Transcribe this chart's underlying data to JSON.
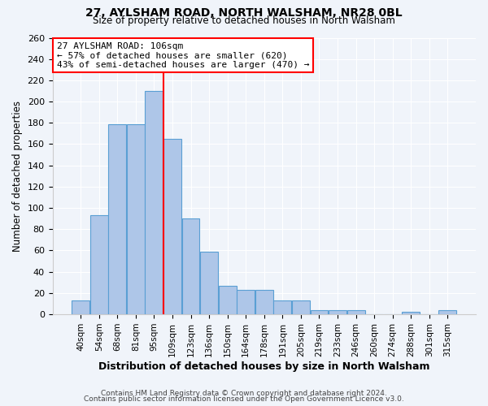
{
  "title": "27, AYLSHAM ROAD, NORTH WALSHAM, NR28 0BL",
  "subtitle": "Size of property relative to detached houses in North Walsham",
  "xlabel": "Distribution of detached houses by size in North Walsham",
  "ylabel": "Number of detached properties",
  "bar_labels": [
    "40sqm",
    "54sqm",
    "68sqm",
    "81sqm",
    "95sqm",
    "109sqm",
    "123sqm",
    "136sqm",
    "150sqm",
    "164sqm",
    "178sqm",
    "191sqm",
    "205sqm",
    "219sqm",
    "233sqm",
    "246sqm",
    "260sqm",
    "274sqm",
    "288sqm",
    "301sqm",
    "315sqm"
  ],
  "bar_values": [
    13,
    93,
    179,
    179,
    210,
    165,
    90,
    59,
    27,
    23,
    23,
    13,
    13,
    4,
    4,
    4,
    0,
    0,
    2,
    0,
    4
  ],
  "bar_color": "#aec6e8",
  "bar_edge_color": "#5a9fd4",
  "vline_x": 4.5,
  "vline_color": "red",
  "annotation_title": "27 AYLSHAM ROAD: 106sqm",
  "annotation_line1": "← 57% of detached houses are smaller (620)",
  "annotation_line2": "43% of semi-detached houses are larger (470) →",
  "annotation_box_color": "white",
  "annotation_box_edge": "red",
  "ylim": [
    0,
    260
  ],
  "yticks": [
    0,
    20,
    40,
    60,
    80,
    100,
    120,
    140,
    160,
    180,
    200,
    220,
    240,
    260
  ],
  "footer1": "Contains HM Land Registry data © Crown copyright and database right 2024.",
  "footer2": "Contains public sector information licensed under the Open Government Licence v3.0.",
  "bg_color": "#f0f4fa"
}
